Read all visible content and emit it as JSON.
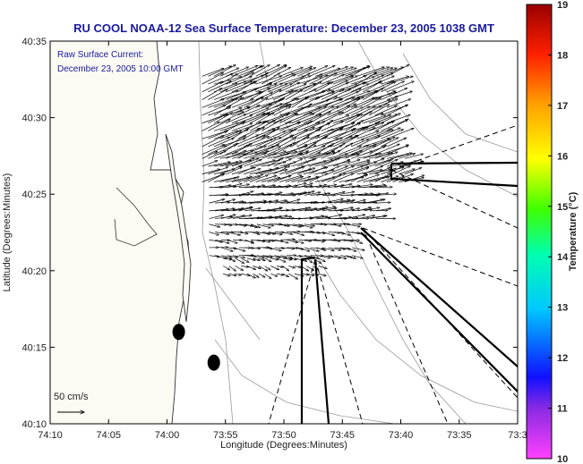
{
  "chart_data": {
    "type": "vector-field",
    "title": "RU COOL  NOAA-12  Sea Surface Temperature:  December 23, 2005 1038 GMT",
    "annotation_lines": [
      "Raw Surface Current:",
      "December 23, 2005 10:00 GMT"
    ],
    "scale_label": "50 cm/s",
    "xlabel": "Longitude (Degrees:Minutes)",
    "ylabel": "Latitude (Degrees:Minutes)",
    "x_ticks": [
      "74:10",
      "74:05",
      "74:00",
      "73:55",
      "73:50",
      "73:45",
      "73:40",
      "73:35",
      "73:3"
    ],
    "y_ticks": [
      "40:35",
      "40:30",
      "40:25",
      "40:20",
      "40:15",
      "40:10"
    ],
    "xlim_deg": [
      -74.1667,
      -73.5
    ],
    "ylim_deg": [
      40.1667,
      40.5833
    ],
    "colorbar": {
      "label": "Temperature (°C)",
      "ticks": [
        "19",
        "18",
        "17",
        "16",
        "15",
        "14",
        "13",
        "12",
        "11",
        "10"
      ],
      "range": [
        10,
        19
      ]
    },
    "colors": {
      "title": "#1a1aa0",
      "land": "#fbfbf3",
      "coast": "#333333",
      "isobath": "#9a9a9a"
    },
    "markers": [
      {
        "lon": -73.9833,
        "lat": 40.2667
      },
      {
        "lon": -73.9333,
        "lat": 40.2333
      }
    ],
    "current_field": {
      "description": "Raw surface current vectors; dominant flow toward east-northeast in the northern region, eastward in southern rows",
      "regions": [
        {
          "lat_range": [
            40.46,
            40.55
          ],
          "lon_range": [
            -73.95,
            -73.68
          ],
          "u_cm_s": 42,
          "v_cm_s": 18
        },
        {
          "lat_range": [
            40.43,
            40.46
          ],
          "lon_range": [
            -73.95,
            -73.66
          ],
          "u_cm_s": 38,
          "v_cm_s": 12
        },
        {
          "lat_range": [
            40.39,
            40.43
          ],
          "lon_range": [
            -73.94,
            -73.7
          ],
          "u_cm_s": 32,
          "v_cm_s": 4
        },
        {
          "lat_range": [
            40.35,
            40.39
          ],
          "lon_range": [
            -73.94,
            -73.73
          ],
          "u_cm_s": 22,
          "v_cm_s": -3
        },
        {
          "lat_range": [
            40.33,
            40.35
          ],
          "lon_range": [
            -73.92,
            -73.78
          ],
          "u_cm_s": 14,
          "v_cm_s": -6
        }
      ]
    }
  }
}
